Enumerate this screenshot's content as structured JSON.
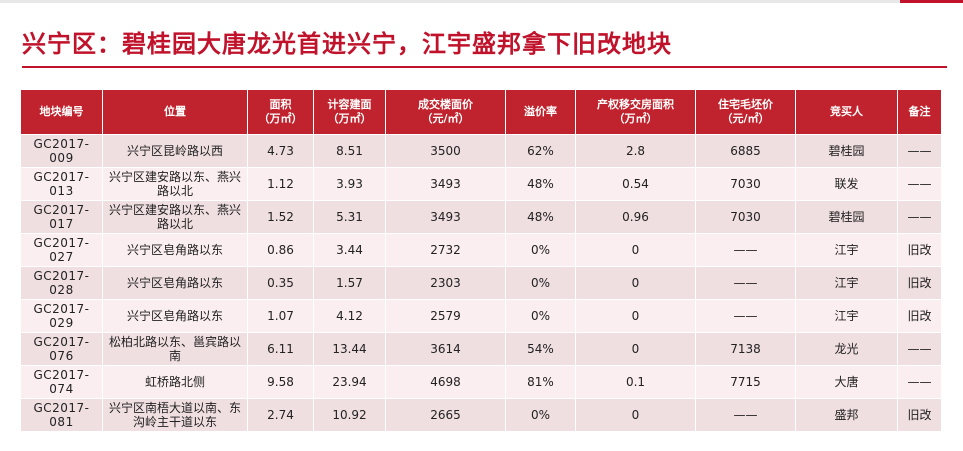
{
  "title": "兴宁区：碧桂园大唐龙光首进兴宁，江宇盛邦拿下旧改地块",
  "colors": {
    "accent": "#c0122b",
    "header_bg": "#c0232d",
    "row_odd": "#f0dfe1",
    "row_even": "#faeef0"
  },
  "table": {
    "headers": [
      "地块编号",
      "位置",
      "面积\n（万㎡）",
      "计容建面\n（万㎡）",
      "成交楼面价\n（元/㎡）",
      "溢价率",
      "产权移交房面积\n（万㎡）",
      "住宅毛坯价\n（元/㎡）",
      "竞买人",
      "备注"
    ],
    "rows": [
      {
        "code": "GC2017-009",
        "location": "兴宁区昆岭路以西",
        "area": "4.73",
        "gfa": "8.51",
        "price": "3500",
        "premium": "62%",
        "transfer_area": "2.8",
        "residential_price": "6885",
        "buyer": "碧桂园",
        "note": "——"
      },
      {
        "code": "GC2017-013",
        "location": "兴宁区建安路以东、燕兴路以北",
        "area": "1.12",
        "gfa": "3.93",
        "price": "3493",
        "premium": "48%",
        "transfer_area": "0.54",
        "residential_price": "7030",
        "buyer": "联发",
        "note": "——"
      },
      {
        "code": "GC2017-017",
        "location": "兴宁区建安路以东、燕兴路以北",
        "area": "1.52",
        "gfa": "5.31",
        "price": "3493",
        "premium": "48%",
        "transfer_area": "0.96",
        "residential_price": "7030",
        "buyer": "碧桂园",
        "note": "——"
      },
      {
        "code": "GC2017-027",
        "location": "兴宁区皂角路以东",
        "area": "0.86",
        "gfa": "3.44",
        "price": "2732",
        "premium": "0%",
        "transfer_area": "0",
        "residential_price": "——",
        "buyer": "江宇",
        "note": "旧改"
      },
      {
        "code": "GC2017-028",
        "location": "兴宁区皂角路以东",
        "area": "0.35",
        "gfa": "1.57",
        "price": "2303",
        "premium": "0%",
        "transfer_area": "0",
        "residential_price": "——",
        "buyer": "江宇",
        "note": "旧改"
      },
      {
        "code": "GC2017-029",
        "location": "兴宁区皂角路以东",
        "area": "1.07",
        "gfa": "4.12",
        "price": "2579",
        "premium": "0%",
        "transfer_area": "0",
        "residential_price": "——",
        "buyer": "江宇",
        "note": "旧改"
      },
      {
        "code": "GC2017-076",
        "location": "松柏北路以东、邕宾路以南",
        "area": "6.11",
        "gfa": "13.44",
        "price": "3614",
        "premium": "54%",
        "transfer_area": "0",
        "residential_price": "7138",
        "buyer": "龙光",
        "note": "——"
      },
      {
        "code": "GC2017-074",
        "location": "虹桥路北侧",
        "area": "9.58",
        "gfa": "23.94",
        "price": "4698",
        "premium": "81%",
        "transfer_area": "0.1",
        "residential_price": "7715",
        "buyer": "大唐",
        "note": "——"
      },
      {
        "code": "GC2017-081",
        "location": "兴宁区南梧大道以南、东沟岭主干道以东",
        "area": "2.74",
        "gfa": "10.92",
        "price": "2665",
        "premium": "0%",
        "transfer_area": "0",
        "residential_price": "——",
        "buyer": "盛邦",
        "note": "旧改"
      }
    ]
  }
}
